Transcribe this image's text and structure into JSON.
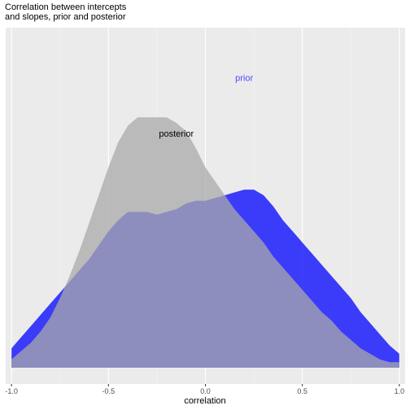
{
  "title_lines": [
    "Correlation between intercepts",
    "and slopes, prior and posterior"
  ],
  "chart_data": {
    "type": "area",
    "title": "Correlation between intercepts\nand slopes, prior and posterior",
    "xlabel": "correlation",
    "ylabel": "",
    "xlim": [
      -1.03,
      1.03
    ],
    "x_ticks": [
      -1.0,
      -0.5,
      0.0,
      0.5,
      1.0
    ],
    "x_tick_labels": [
      "-1.0",
      "-0.5",
      "0.0",
      "0.5",
      "1.0"
    ],
    "y_ticks_shown": false,
    "grid": true,
    "annotations": [
      {
        "text": "prior",
        "x": 0.2,
        "y": 1.03,
        "color": "#4B4BFF"
      },
      {
        "text": "posterior",
        "x": -0.15,
        "y": 0.83,
        "color": "#000000"
      }
    ],
    "series": [
      {
        "name": "prior",
        "color": "#0000FF",
        "opacity": 0.75,
        "x": [
          -1.0,
          -0.95,
          -0.9,
          -0.85,
          -0.8,
          -0.75,
          -0.7,
          -0.65,
          -0.6,
          -0.55,
          -0.5,
          -0.45,
          -0.4,
          -0.35,
          -0.3,
          -0.25,
          -0.2,
          -0.15,
          -0.1,
          -0.05,
          0.0,
          0.05,
          0.1,
          0.15,
          0.2,
          0.25,
          0.3,
          0.35,
          0.4,
          0.45,
          0.5,
          0.55,
          0.6,
          0.65,
          0.7,
          0.75,
          0.8,
          0.85,
          0.9,
          0.95,
          1.0
        ],
        "y": [
          0.07,
          0.11,
          0.15,
          0.19,
          0.23,
          0.27,
          0.31,
          0.35,
          0.39,
          0.44,
          0.49,
          0.53,
          0.56,
          0.56,
          0.56,
          0.55,
          0.56,
          0.57,
          0.59,
          0.6,
          0.6,
          0.61,
          0.62,
          0.63,
          0.64,
          0.64,
          0.62,
          0.58,
          0.53,
          0.49,
          0.45,
          0.41,
          0.37,
          0.33,
          0.29,
          0.25,
          0.2,
          0.16,
          0.12,
          0.08,
          0.05
        ]
      },
      {
        "name": "posterior",
        "color": "#A9A9A9",
        "opacity": 0.75,
        "x": [
          -1.0,
          -0.95,
          -0.9,
          -0.85,
          -0.8,
          -0.75,
          -0.7,
          -0.65,
          -0.6,
          -0.55,
          -0.5,
          -0.45,
          -0.4,
          -0.35,
          -0.3,
          -0.25,
          -0.2,
          -0.15,
          -0.1,
          -0.05,
          0.0,
          0.05,
          0.1,
          0.15,
          0.2,
          0.25,
          0.3,
          0.35,
          0.4,
          0.45,
          0.5,
          0.55,
          0.6,
          0.65,
          0.7,
          0.75,
          0.8,
          0.85,
          0.9,
          0.95,
          1.0
        ],
        "y": [
          0.03,
          0.06,
          0.09,
          0.13,
          0.18,
          0.25,
          0.33,
          0.42,
          0.52,
          0.62,
          0.72,
          0.81,
          0.87,
          0.9,
          0.9,
          0.9,
          0.9,
          0.88,
          0.85,
          0.79,
          0.72,
          0.67,
          0.62,
          0.57,
          0.53,
          0.49,
          0.45,
          0.4,
          0.36,
          0.32,
          0.28,
          0.24,
          0.2,
          0.17,
          0.13,
          0.1,
          0.07,
          0.05,
          0.03,
          0.02,
          0.02
        ]
      }
    ]
  }
}
